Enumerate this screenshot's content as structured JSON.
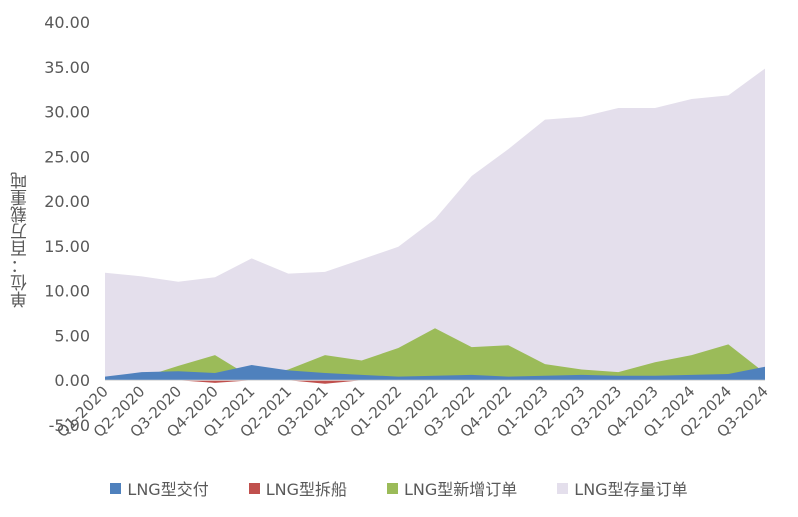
{
  "chart_data": {
    "type": "area",
    "title": "",
    "xlabel": "",
    "ylabel": "单位：百万载重吨",
    "ylim": [
      -5,
      40
    ],
    "yticks": [
      "-5.00",
      "0.00",
      "5.00",
      "10.00",
      "15.00",
      "20.00",
      "25.00",
      "30.00",
      "35.00",
      "40.00"
    ],
    "categories": [
      "Q1-2020",
      "Q2-2020",
      "Q3-2020",
      "Q4-2020",
      "Q1-2021",
      "Q2-2021",
      "Q3-2021",
      "Q4-2021",
      "Q1-2022",
      "Q2-2022",
      "Q3-2022",
      "Q4-2022",
      "Q1-2023",
      "Q2-2023",
      "Q3-2023",
      "Q4-2023",
      "Q1-2024",
      "Q2-2024",
      "Q3-2024"
    ],
    "legend_position": "bottom",
    "grid": false,
    "series": [
      {
        "name": "LNG型存量订单",
        "color": "#e4dfec",
        "values": [
          12.0,
          11.6,
          11.0,
          11.5,
          13.6,
          11.9,
          12.1,
          13.5,
          14.9,
          18.0,
          22.8,
          25.8,
          29.1,
          29.4,
          30.4,
          30.4,
          31.4,
          31.8,
          34.8
        ]
      },
      {
        "name": "LNG型新增订单",
        "color": "#9bbb59",
        "values": [
          0.1,
          0.3,
          1.6,
          2.8,
          0.3,
          1.2,
          2.8,
          2.2,
          3.6,
          5.8,
          3.7,
          3.9,
          1.8,
          1.2,
          0.9,
          2.0,
          2.8,
          4.0,
          0.8
        ]
      },
      {
        "name": "LNG型交付",
        "color": "#4f81bd",
        "values": [
          0.4,
          0.9,
          1.0,
          0.8,
          1.7,
          1.1,
          0.8,
          0.6,
          0.4,
          0.5,
          0.6,
          0.4,
          0.5,
          0.6,
          0.5,
          0.5,
          0.6,
          0.7,
          1.5
        ]
      },
      {
        "name": "LNG型拆船",
        "color": "#c0504d",
        "values": [
          0,
          0,
          0,
          -0.3,
          0,
          0,
          -0.4,
          0,
          0,
          0,
          0,
          0,
          0,
          0,
          0,
          0,
          0,
          0,
          0
        ]
      }
    ],
    "legend_order": [
      "LNG型交付",
      "LNG型拆船",
      "LNG型新增订单",
      "LNG型存量订单"
    ]
  }
}
